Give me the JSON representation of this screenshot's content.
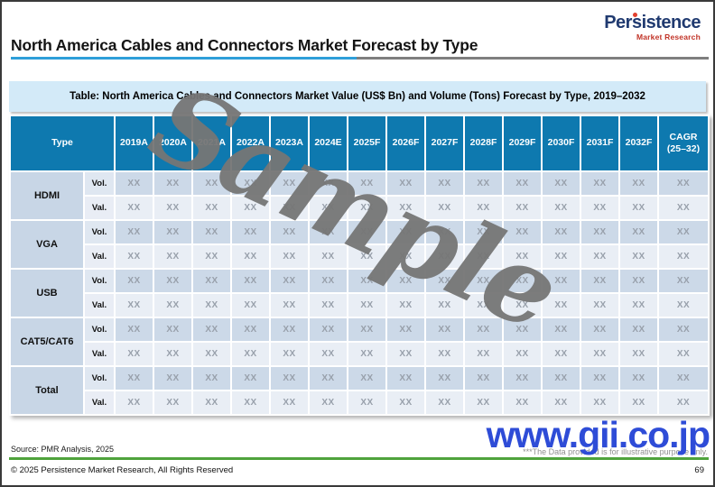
{
  "page": {
    "title": "North America Cables and Connectors Market Forecast by Type",
    "logo": {
      "name": "Persistence",
      "tagline": "Market Research"
    },
    "source": "Source: PMR Analysis, 2025",
    "note": "***The Data provided is for illustrative purpose only.",
    "watermarks": {
      "sample": "Sample",
      "site": "www.gii.co.jp"
    },
    "footer": {
      "copyright": "© 2025 Persistence Market Research, All Rights Reserved",
      "page_number": "69"
    }
  },
  "table": {
    "caption": "Table: North America Cables and Connectors Market Value (US$ Bn) and Volume (Tons) Forecast by Type, 2019–2032",
    "type_header": "Type",
    "year_columns": [
      "2019A",
      "2020A",
      "2021A",
      "2022A",
      "2023A",
      "2024E",
      "2025F",
      "2026F",
      "2027F",
      "2028F",
      "2029F",
      "2030F",
      "2031F",
      "2032F"
    ],
    "cagr_header": "CAGR\n(25–32)",
    "row_groups": [
      {
        "type": "HDMI",
        "rows": [
          {
            "label": "Vol.",
            "values": [
              "XX",
              "XX",
              "XX",
              "XX",
              "XX",
              "XX",
              "XX",
              "XX",
              "XX",
              "XX",
              "XX",
              "XX",
              "XX",
              "XX",
              "XX"
            ]
          },
          {
            "label": "Val.",
            "values": [
              "XX",
              "XX",
              "XX",
              "XX",
              "XX",
              "XX",
              "XX",
              "XX",
              "XX",
              "XX",
              "XX",
              "XX",
              "XX",
              "XX",
              "XX"
            ]
          }
        ]
      },
      {
        "type": "VGA",
        "rows": [
          {
            "label": "Vol.",
            "values": [
              "XX",
              "XX",
              "XX",
              "XX",
              "XX",
              "XX",
              "XX",
              "XX",
              "XX",
              "XX",
              "XX",
              "XX",
              "XX",
              "XX",
              "XX"
            ]
          },
          {
            "label": "Val.",
            "values": [
              "XX",
              "XX",
              "XX",
              "XX",
              "XX",
              "XX",
              "XX",
              "XX",
              "XX",
              "XX",
              "XX",
              "XX",
              "XX",
              "XX",
              "XX"
            ]
          }
        ]
      },
      {
        "type": "USB",
        "rows": [
          {
            "label": "Vol.",
            "values": [
              "XX",
              "XX",
              "XX",
              "XX",
              "XX",
              "XX",
              "XX",
              "XX",
              "XX",
              "XX",
              "XX",
              "XX",
              "XX",
              "XX",
              "XX"
            ]
          },
          {
            "label": "Val.",
            "values": [
              "XX",
              "XX",
              "XX",
              "XX",
              "XX",
              "XX",
              "XX",
              "XX",
              "XX",
              "XX",
              "XX",
              "XX",
              "XX",
              "XX",
              "XX"
            ]
          }
        ]
      },
      {
        "type": "CAT5/CAT6",
        "rows": [
          {
            "label": "Vol.",
            "values": [
              "XX",
              "XX",
              "XX",
              "XX",
              "XX",
              "XX",
              "XX",
              "XX",
              "XX",
              "XX",
              "XX",
              "XX",
              "XX",
              "XX",
              "XX"
            ]
          },
          {
            "label": "Val.",
            "values": [
              "XX",
              "XX",
              "XX",
              "XX",
              "XX",
              "XX",
              "XX",
              "XX",
              "XX",
              "XX",
              "XX",
              "XX",
              "XX",
              "XX",
              "XX"
            ]
          }
        ]
      },
      {
        "type": "Total",
        "rows": [
          {
            "label": "Vol.",
            "values": [
              "XX",
              "XX",
              "XX",
              "XX",
              "XX",
              "XX",
              "XX",
              "XX",
              "XX",
              "XX",
              "XX",
              "XX",
              "XX",
              "XX",
              "XX"
            ]
          },
          {
            "label": "Val.",
            "values": [
              "XX",
              "XX",
              "XX",
              "XX",
              "XX",
              "XX",
              "XX",
              "XX",
              "XX",
              "XX",
              "XX",
              "XX",
              "XX",
              "XX",
              "XX"
            ]
          }
        ]
      }
    ]
  },
  "colors": {
    "header_blue": "#0e79af",
    "band_blue": "#d3eaf8",
    "title_rule_blue": "#2e9fd9",
    "title_rule_gray": "#7f7f7f",
    "type_cell_blue": "#c8d6e6",
    "vol_row_blue": "#ccd9e8",
    "val_row_blue": "#e9eef5",
    "green_rule": "#4fa33c",
    "gii_blue": "#2e4cd7",
    "logo_navy": "#203a70",
    "logo_red": "#c13327",
    "watermark_gray": "#767676"
  }
}
